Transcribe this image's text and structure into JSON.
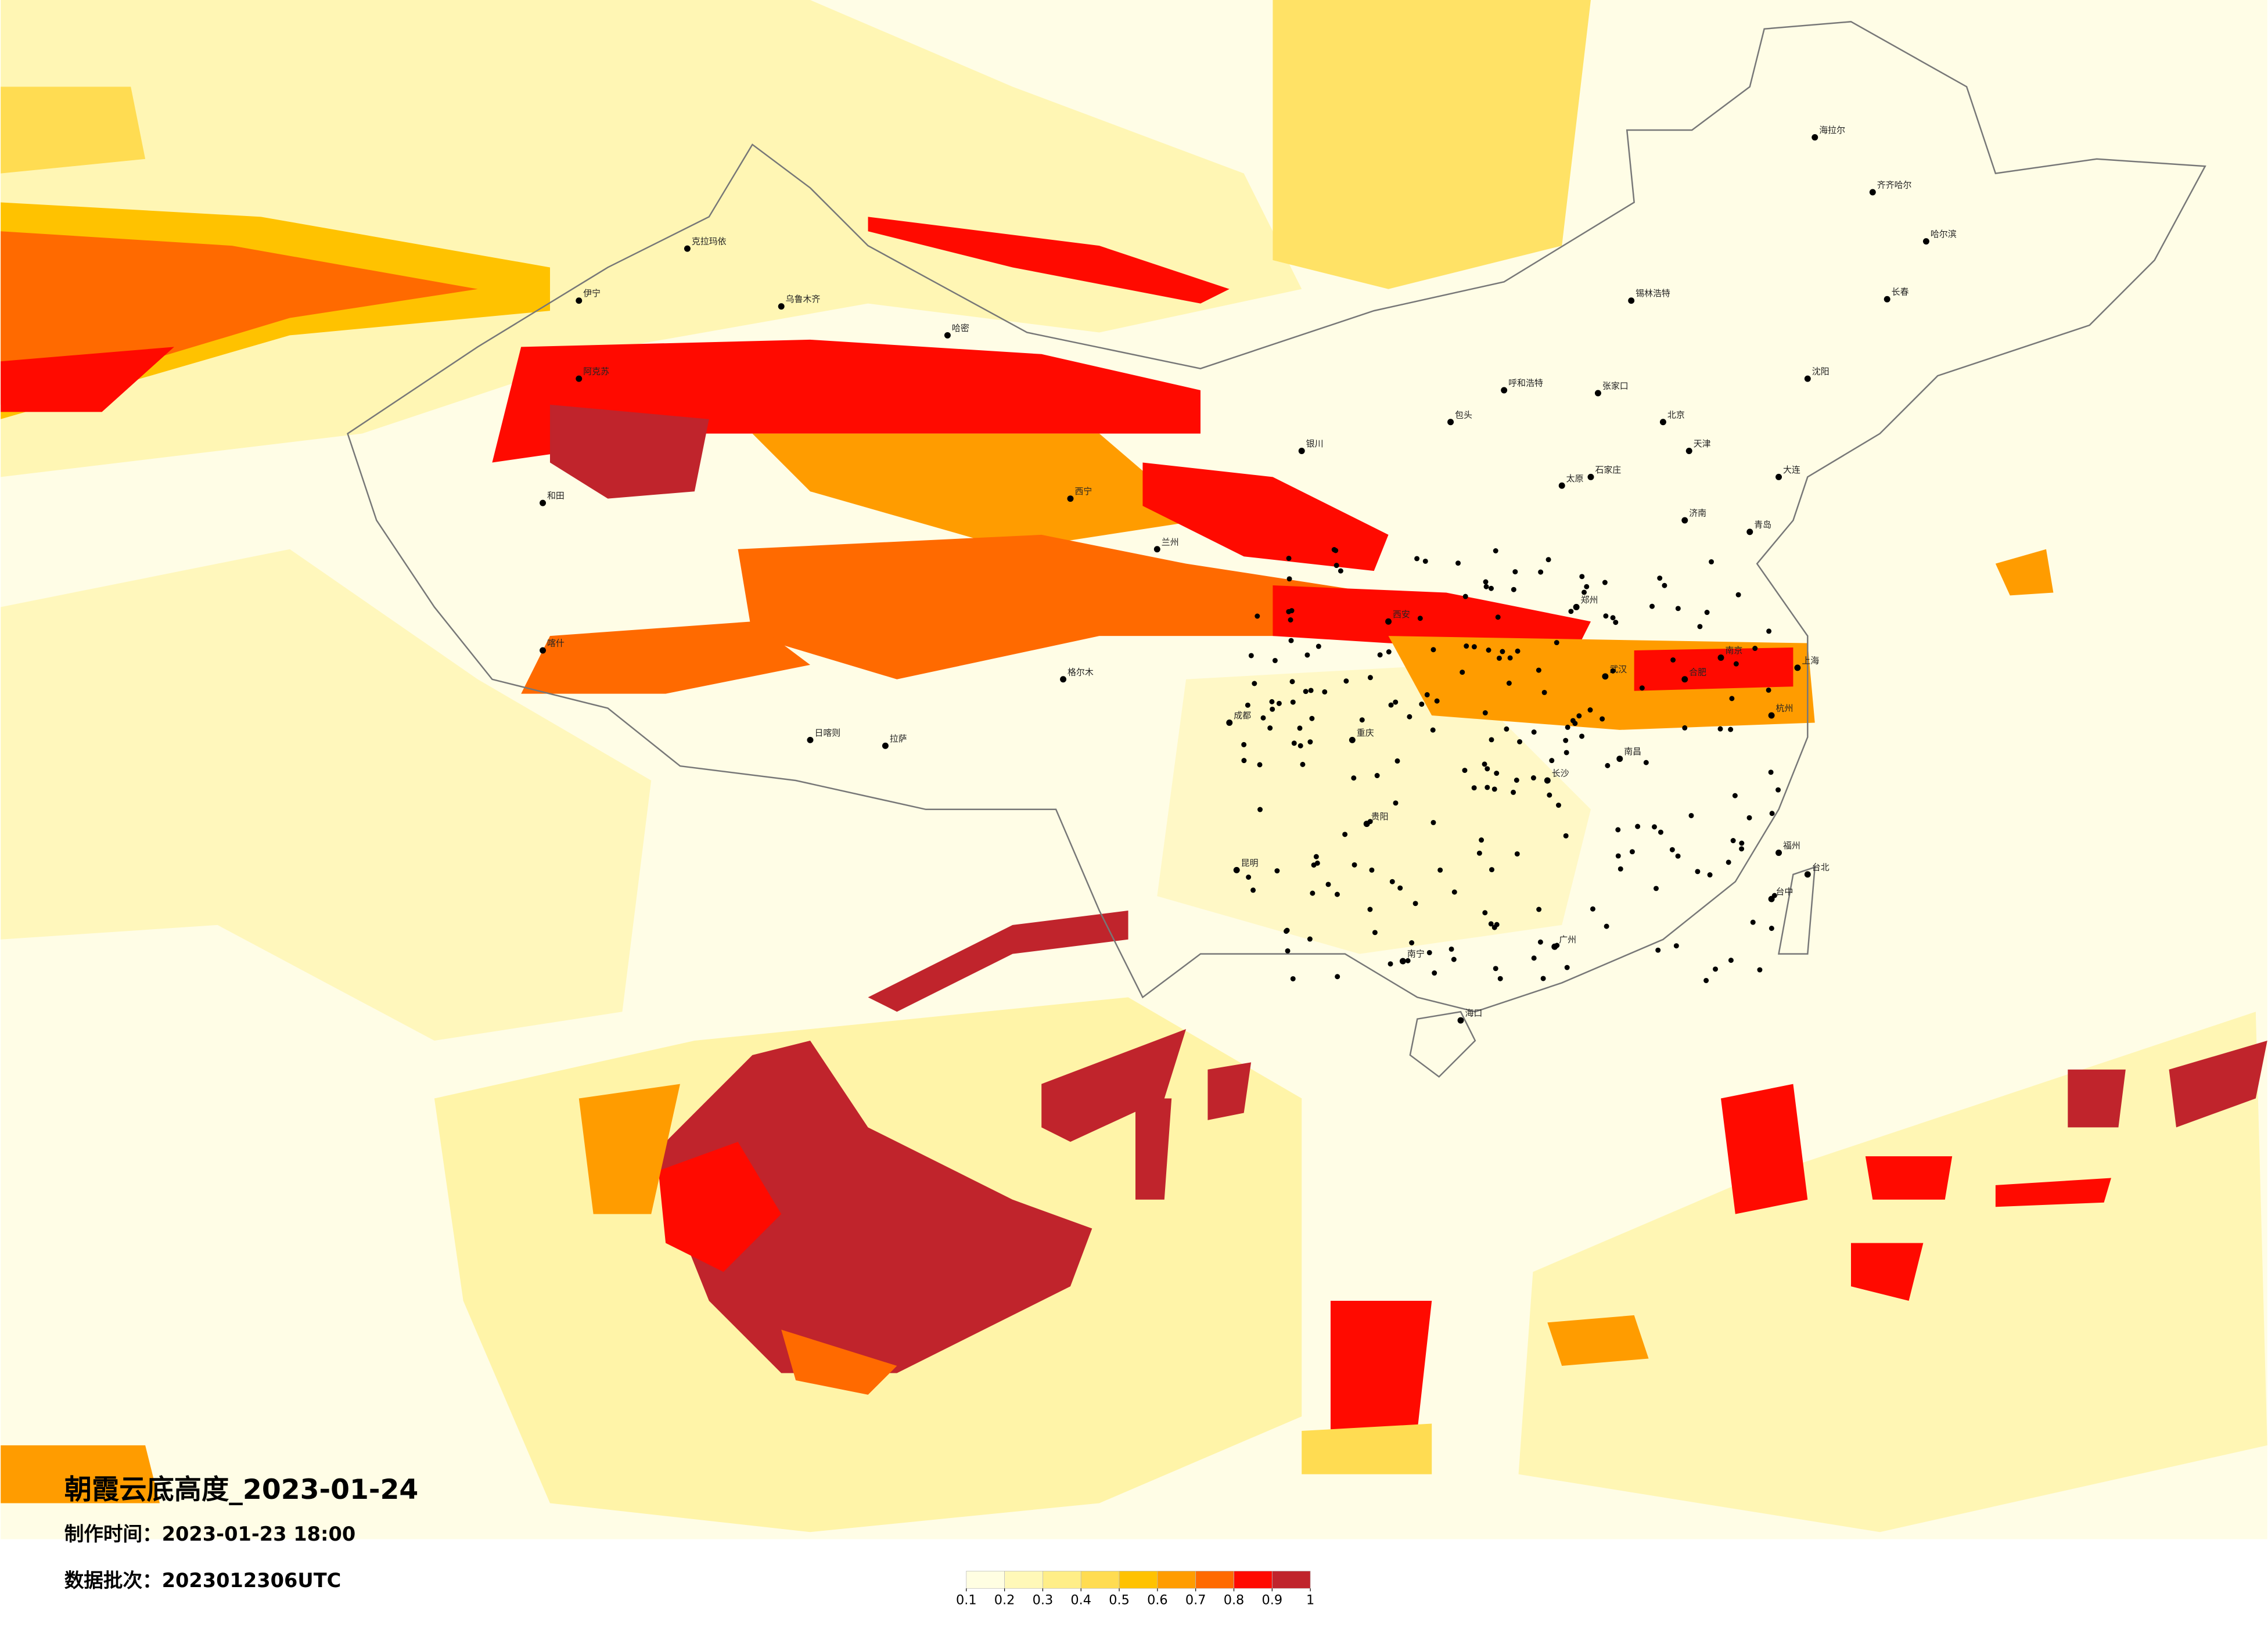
{
  "header": {
    "title": "朝霞云底高度_2023-01-24",
    "production_time": "制作时间：2023-01-23 18:00",
    "data_batch": "数据批次：2023012306UTC"
  },
  "map": {
    "cities": [
      "乌鲁木齐",
      "克拉玛依",
      "伊宁",
      "阿克苏",
      "喀什",
      "和田",
      "哈密",
      "格尔木",
      "拉萨",
      "日喀则",
      "西宁",
      "兰州",
      "银川",
      "呼和浩特",
      "包头",
      "太原",
      "北京",
      "天津",
      "石家庄",
      "济南",
      "郑州",
      "西安",
      "成都",
      "重庆",
      "贵阳",
      "昆明",
      "南宁",
      "广州",
      "海口",
      "长沙",
      "武汉",
      "南昌",
      "合肥",
      "南京",
      "上海",
      "杭州",
      "福州",
      "台北",
      "台中",
      "沈阳",
      "长春",
      "哈尔滨",
      "齐齐哈尔",
      "海拉尔",
      "锡林浩特",
      "张家口",
      "大连",
      "青岛"
    ]
  },
  "colorbar": {
    "ticks": [
      0.1,
      0.2,
      0.3,
      0.4,
      0.5,
      0.6,
      0.7,
      0.8,
      0.9,
      1
    ],
    "colors": [
      "#fffee2",
      "#fff8b8",
      "#ffee88",
      "#ffdc52",
      "#ffc200",
      "#ff9c00",
      "#ff6a00",
      "#ff0a00",
      "#c0242c"
    ]
  }
}
